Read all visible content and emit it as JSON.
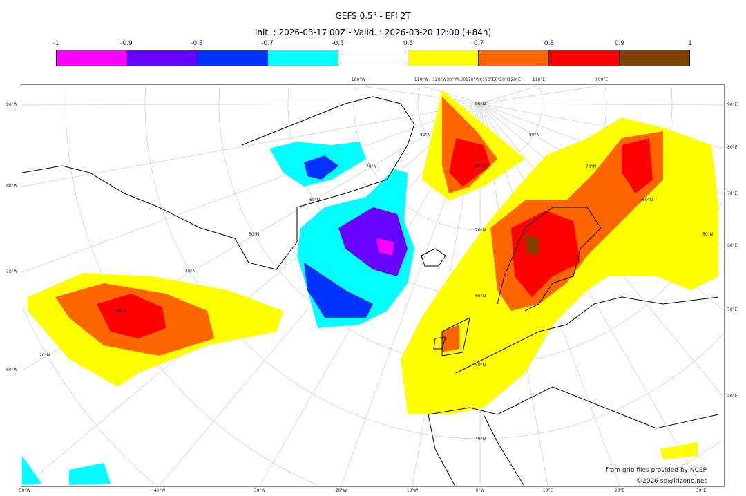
{
  "title": "GEFS 0.5° - EFI 2T",
  "subtitle": "Init. : 2026-03-17 00Z - Valid. : 2026-03-20 12:00 (+84h)",
  "colorbar": {
    "labels": [
      "-1",
      "-0.9",
      "-0.8",
      "-0.7",
      "-0.5",
      "0.5",
      "0.7",
      "0.8",
      "0.9",
      "1"
    ],
    "colors": [
      "#ff00ff",
      "#6600ff",
      "#0033ff",
      "#00ffff",
      "#ffffff",
      "#ffff00",
      "#ff6600",
      "#ff0000",
      "#804000"
    ]
  },
  "axes": {
    "bottom": [
      "50°W",
      "40°W",
      "30°W",
      "20°W",
      "10°W",
      "0°W",
      "10°E",
      "20°E",
      "30°E"
    ],
    "left": [
      "90°W",
      "80°W",
      "70°W",
      "60°W"
    ],
    "right": [
      "90°E",
      "80°E",
      "70°E",
      "60°E",
      "50°E",
      "40°E"
    ],
    "top": [
      "100°W",
      "110°W",
      "120°W30°WL50170°W€150°E0°E0°I120°E",
      "110°E",
      "100°E"
    ]
  },
  "lat_labels": [
    "90°N",
    "80°N",
    "70°N",
    "60°N",
    "50°N",
    "40°N",
    "70°N",
    "60°N",
    "50°N",
    "40°N",
    "30°N",
    "20°N",
    "60°N",
    "50°N",
    "70°N",
    "80°N",
    "80°N"
  ],
  "credits": {
    "source": "from grib files provided by NCEP",
    "copyright": "©2026 sb@irizone.net"
  }
}
